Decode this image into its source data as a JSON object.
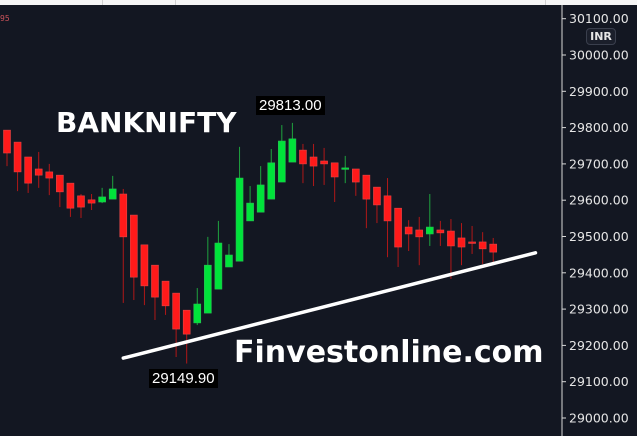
{
  "header": {
    "corner_text": "95",
    "currency_badge": "INR"
  },
  "overlay": {
    "title": "BANKNIFTY",
    "watermark": "Finvestonline.com",
    "high_label": "29813.00",
    "low_label": "29149.90"
  },
  "chart_data": {
    "type": "candlestick",
    "title": "BANKNIFTY",
    "ylim": [
      28970,
      30105
    ],
    "y_ticks": [
      30100,
      30000,
      29900,
      29800,
      29700,
      29600,
      29500,
      29400,
      29300,
      29200,
      29100,
      29000
    ],
    "y_tick_labels": [
      "30100.00",
      "30000.00",
      "29900.00",
      "29800.00",
      "29700.00",
      "29600.00",
      "29500.00",
      "29400.00",
      "29300.00",
      "29200.00",
      "29100.00",
      "29000.00"
    ],
    "grid": false,
    "colors": {
      "up": "#00e33a",
      "down": "#ff1a1a",
      "background": "#131722",
      "trendline": "#ffffff"
    },
    "candles_ohlc": [
      [
        29793,
        29793,
        29694,
        29730
      ],
      [
        29760,
        29760,
        29625,
        29678
      ],
      [
        29719,
        29719,
        29620,
        29647
      ],
      [
        29686,
        29733,
        29634,
        29669
      ],
      [
        29678,
        29700,
        29614,
        29661
      ],
      [
        29669,
        29669,
        29581,
        29623
      ],
      [
        29647,
        29647,
        29554,
        29578
      ],
      [
        29612,
        29617,
        29551,
        29581
      ],
      [
        29601,
        29617,
        29573,
        29592
      ],
      [
        29595,
        29634,
        29592,
        29609
      ],
      [
        29603,
        29667,
        29603,
        29631
      ],
      [
        29617,
        29631,
        29317,
        29499
      ],
      [
        29559,
        29559,
        29325,
        29388
      ],
      [
        29477,
        29477,
        29311,
        29364
      ],
      [
        29421,
        29421,
        29270,
        29333
      ],
      [
        29377,
        29377,
        29284,
        29309
      ],
      [
        29344,
        29344,
        29168,
        29245
      ],
      [
        29297,
        29297,
        29150,
        29231
      ],
      [
        29262,
        29358,
        29256,
        29314
      ],
      [
        29289,
        29499,
        29289,
        29421
      ],
      [
        29355,
        29543,
        29355,
        29482
      ],
      [
        29416,
        29479,
        29416,
        29449
      ],
      [
        29432,
        29747,
        29432,
        29661
      ],
      [
        29543,
        29639,
        29543,
        29592
      ],
      [
        29567,
        29694,
        29567,
        29642
      ],
      [
        29603,
        29741,
        29603,
        29703
      ],
      [
        29650,
        29807,
        29650,
        29763
      ],
      [
        29705,
        29813,
        29705,
        29769
      ],
      [
        29738,
        29755,
        29647,
        29700
      ],
      [
        29719,
        29755,
        29639,
        29694
      ],
      [
        29708,
        29744,
        29642,
        29700
      ],
      [
        29703,
        29703,
        29595,
        29664
      ],
      [
        29686,
        29722,
        29647,
        29689
      ],
      [
        29686,
        29686,
        29612,
        29650
      ],
      [
        29669,
        29669,
        29523,
        29603
      ],
      [
        29636,
        29636,
        29537,
        29587
      ],
      [
        29612,
        29661,
        29443,
        29543
      ],
      [
        29578,
        29578,
        29416,
        29471
      ],
      [
        29526,
        29545,
        29460,
        29507
      ],
      [
        29518,
        29554,
        29421,
        29499
      ],
      [
        29507,
        29617,
        29474,
        29526
      ],
      [
        29518,
        29543,
        29474,
        29510
      ],
      [
        29515,
        29548,
        29383,
        29474
      ],
      [
        29496,
        29537,
        29421,
        29471
      ],
      [
        29485,
        29529,
        29452,
        29482
      ],
      [
        29485,
        29512,
        29424,
        29466
      ],
      [
        29479,
        29496,
        29424,
        29457
      ]
    ],
    "trendline": {
      "start": {
        "bar": 11,
        "price": 29165
      },
      "end": {
        "bar": 50,
        "price": 29455
      }
    },
    "annotations": [
      "29813.00",
      "29149.90",
      "BANKNIFTY",
      "Finvestonline.com"
    ]
  }
}
